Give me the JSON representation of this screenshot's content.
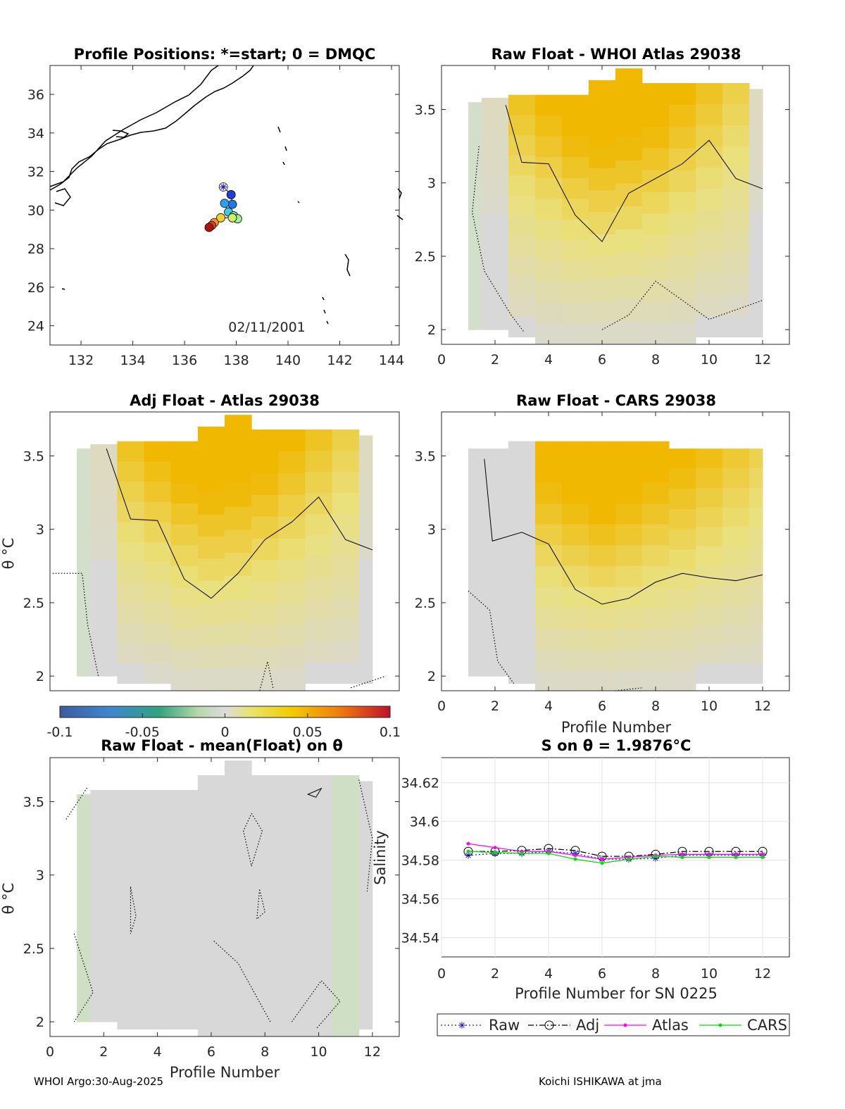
{
  "footer": {
    "left": "WHOI Argo:30-Aug-2025",
    "right": "Koichi ISHIKAWA at jma"
  },
  "colorbar": {
    "ticks": [
      "-0.1",
      "-0.05",
      "0",
      "0.05",
      "0.1"
    ],
    "range": [
      -0.1,
      0.1
    ]
  },
  "chart_data": [
    {
      "id": "map",
      "type": "scatter",
      "title": "Profile Positions: *=start; 0 = DMQC",
      "xlabel": "",
      "ylabel": "",
      "xlim": [
        130.8,
        144.3
      ],
      "ylim": [
        23,
        37.5
      ],
      "xticks": [
        "132",
        "134",
        "136",
        "138",
        "140",
        "142",
        "144"
      ],
      "yticks": [
        "24",
        "26",
        "28",
        "30",
        "32",
        "34",
        "36"
      ],
      "annotation": "02/11/2001",
      "points": [
        {
          "lon": 137.5,
          "lat": 31.2,
          "marker": "start"
        },
        {
          "lon": 137.8,
          "lat": 30.8
        },
        {
          "lon": 137.85,
          "lat": 30.3
        },
        {
          "lon": 137.55,
          "lat": 30.35
        },
        {
          "lon": 137.7,
          "lat": 29.9
        },
        {
          "lon": 137.9,
          "lat": 29.7
        },
        {
          "lon": 138.05,
          "lat": 29.55
        },
        {
          "lon": 137.85,
          "lat": 29.6
        },
        {
          "lon": 137.4,
          "lat": 29.6
        },
        {
          "lon": 137.15,
          "lat": 29.35
        },
        {
          "lon": 137.05,
          "lat": 29.2
        },
        {
          "lon": 136.95,
          "lat": 29.1
        }
      ],
      "colors": [
        "#ffffff",
        "#1f3fd7",
        "#1f78e8",
        "#2aa0f0",
        "#3ec8e6",
        "#68e6c8",
        "#9ef09a",
        "#cfee60",
        "#f3d12c",
        "#f39320",
        "#dd4418",
        "#b01010"
      ]
    },
    {
      "id": "raw-whoi",
      "type": "heatmap",
      "title": "Raw Float - WHOI Atlas  29038",
      "xlabel": "",
      "ylabel": "",
      "xlim": [
        0,
        13
      ],
      "ylim": [
        1.9,
        3.8
      ],
      "xticks": [
        "0",
        "2",
        "4",
        "6",
        "8",
        "10",
        "12"
      ],
      "yticks": [
        "2",
        "2.5",
        "3",
        "3.5"
      ],
      "profiles": [
        1,
        2,
        3,
        4,
        5,
        6,
        7,
        8,
        9,
        10,
        11,
        12
      ],
      "theta_top": [
        3.55,
        3.58,
        3.6,
        3.6,
        3.6,
        3.7,
        3.78,
        3.68,
        3.68,
        3.68,
        3.68,
        3.64
      ],
      "theta_bottom": [
        2.0,
        2.0,
        1.95,
        1.9,
        1.9,
        1.9,
        1.9,
        1.9,
        1.9,
        1.95,
        1.95,
        1.95
      ],
      "zero_contour": [
        [
          2.4,
          3.53
        ],
        [
          3.0,
          3.14
        ],
        [
          4.0,
          3.13
        ],
        [
          5.0,
          2.78
        ],
        [
          6.0,
          2.6
        ],
        [
          7.0,
          2.93
        ],
        [
          8.0,
          3.03
        ],
        [
          9.0,
          3.13
        ],
        [
          10.0,
          3.29
        ],
        [
          11.0,
          3.03
        ],
        [
          12.0,
          2.96
        ]
      ]
    },
    {
      "id": "adj-atlas",
      "type": "heatmap",
      "title": "Adj Float - Atlas  29038",
      "xlabel": "",
      "ylabel": "θ °C",
      "xlim": [
        0,
        13
      ],
      "ylim": [
        1.9,
        3.8
      ],
      "xticks": [],
      "yticks": [
        "2",
        "2.5",
        "3",
        "3.5"
      ],
      "profiles": [
        1,
        2,
        3,
        4,
        5,
        6,
        7,
        8,
        9,
        10,
        11,
        12
      ],
      "theta_top": [
        3.55,
        3.58,
        3.6,
        3.6,
        3.6,
        3.7,
        3.78,
        3.68,
        3.68,
        3.68,
        3.68,
        3.64
      ],
      "theta_bottom": [
        2.0,
        2.0,
        1.95,
        1.95,
        1.9,
        1.9,
        1.9,
        1.9,
        1.9,
        1.95,
        1.95,
        1.95
      ],
      "zero_contour": [
        [
          2.1,
          3.55
        ],
        [
          3.0,
          3.07
        ],
        [
          4.0,
          3.06
        ],
        [
          5.0,
          2.66
        ],
        [
          6.0,
          2.53
        ],
        [
          7.0,
          2.7
        ],
        [
          8.0,
          2.93
        ],
        [
          9.0,
          3.05
        ],
        [
          10.0,
          3.22
        ],
        [
          11.0,
          2.93
        ],
        [
          12.0,
          2.86
        ]
      ]
    },
    {
      "id": "raw-cars",
      "type": "heatmap",
      "title": "Raw Float - CARS  29038",
      "xlabel": "Profile Number",
      "ylabel": "",
      "xlim": [
        0,
        13
      ],
      "ylim": [
        1.9,
        3.8
      ],
      "xticks": [
        "0",
        "2",
        "4",
        "6",
        "8",
        "10",
        "12"
      ],
      "yticks": [
        "2",
        "2.5",
        "3",
        "3.5"
      ],
      "profiles": [
        1,
        2,
        3,
        4,
        5,
        6,
        7,
        8,
        9,
        10,
        11,
        12
      ],
      "theta_top": [
        3.55,
        3.55,
        3.6,
        3.6,
        3.6,
        3.6,
        3.6,
        3.6,
        3.55,
        3.55,
        3.55,
        3.55
      ],
      "theta_bottom": [
        2.0,
        2.0,
        1.95,
        1.9,
        1.9,
        1.9,
        1.9,
        1.9,
        1.9,
        1.95,
        1.95,
        1.95
      ],
      "zero_contour": [
        [
          1.6,
          3.48
        ],
        [
          1.9,
          2.92
        ],
        [
          3.0,
          2.98
        ],
        [
          4.0,
          2.9
        ],
        [
          5.0,
          2.59
        ],
        [
          6.0,
          2.49
        ],
        [
          7.0,
          2.53
        ],
        [
          8.0,
          2.64
        ],
        [
          9.0,
          2.7
        ],
        [
          10.0,
          2.67
        ],
        [
          11.0,
          2.65
        ],
        [
          12.0,
          2.69
        ]
      ]
    },
    {
      "id": "raw-mean",
      "type": "heatmap",
      "title": "Raw Float - mean(Float) on θ",
      "xlabel": "Profile Number",
      "ylabel": "θ °C",
      "xlim": [
        0,
        13
      ],
      "ylim": [
        1.9,
        3.8
      ],
      "xticks": [
        "0",
        "2",
        "4",
        "6",
        "8",
        "10",
        "12"
      ],
      "yticks": [
        "2",
        "2.5",
        "3",
        "3.5"
      ],
      "profiles": [
        1,
        2,
        3,
        4,
        5,
        6,
        7,
        8,
        9,
        10,
        11,
        12
      ],
      "theta_top": [
        3.55,
        3.58,
        3.58,
        3.58,
        3.58,
        3.68,
        3.78,
        3.68,
        3.68,
        3.68,
        3.68,
        3.64
      ],
      "theta_bottom": [
        2.0,
        2.0,
        1.95,
        1.95,
        1.95,
        1.9,
        1.9,
        1.9,
        1.9,
        1.9,
        1.9,
        1.95
      ],
      "solid_contour": [
        [
          9.9,
          3.53
        ],
        [
          10.1,
          3.59
        ],
        [
          9.6,
          3.55
        ],
        [
          9.9,
          3.53
        ]
      ]
    },
    {
      "id": "salinity",
      "type": "line",
      "title": "S on θ = 1.9876°C",
      "xlabel": "Profile Number for SN 0225",
      "ylabel": "Salinity",
      "xlim": [
        0,
        13
      ],
      "ylim": [
        34.53,
        34.633
      ],
      "xticks": [
        "0",
        "2",
        "4",
        "6",
        "8",
        "10",
        "12"
      ],
      "yticks": [
        "34.54",
        "34.56",
        "34.58",
        "34.6",
        "34.62"
      ],
      "x": [
        1,
        2,
        3,
        4,
        5,
        6,
        7,
        8,
        9,
        10,
        11,
        12
      ],
      "series": [
        {
          "name": "Raw",
          "color": "#1f1fd0",
          "style": "dotted",
          "marker": "asterisk",
          "values": [
            34.5825,
            34.5835,
            34.5835,
            34.5845,
            34.5835,
            34.5805,
            34.5805,
            34.581,
            34.5825,
            34.5825,
            34.5825,
            34.5825
          ]
        },
        {
          "name": "Adj",
          "color": "#000000",
          "style": "dashdot",
          "marker": "circle",
          "values": [
            34.5845,
            34.5845,
            34.585,
            34.586,
            34.585,
            34.582,
            34.582,
            34.583,
            34.5845,
            34.5845,
            34.5845,
            34.5845
          ]
        },
        {
          "name": "Atlas",
          "color": "#ff00ff",
          "style": "solid",
          "marker": "dot",
          "values": [
            34.5885,
            34.5865,
            34.5845,
            34.5845,
            34.5825,
            34.5805,
            34.5815,
            34.5825,
            34.583,
            34.583,
            34.583,
            34.583
          ]
        },
        {
          "name": "CARS",
          "color": "#00e000",
          "style": "solid",
          "marker": "dot",
          "values": [
            34.5845,
            34.584,
            34.5835,
            34.5835,
            34.5805,
            34.5785,
            34.5805,
            34.582,
            34.5815,
            34.5815,
            34.5815,
            34.5815
          ]
        }
      ]
    }
  ]
}
